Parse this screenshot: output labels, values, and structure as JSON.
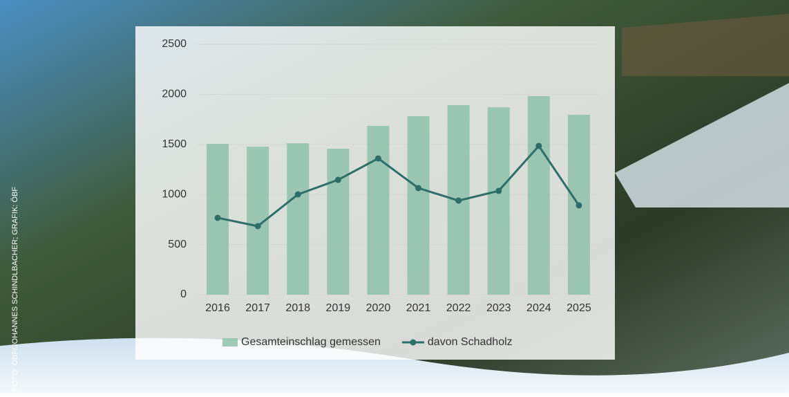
{
  "credit": "FOTO: ÖBF/JOHANNES SCHINDLBACHER; GRAFIK: ÖBF",
  "chart_data": {
    "type": "combo",
    "categories": [
      "2016",
      "2017",
      "2018",
      "2019",
      "2020",
      "2021",
      "2022",
      "2023",
      "2024",
      "2025"
    ],
    "series": [
      {
        "name": "Gesamteinschlag gemessen",
        "type": "bar",
        "color": "#8fc1ac",
        "values": [
          1505,
          1478,
          1512,
          1457,
          1685,
          1782,
          1892,
          1871,
          1982,
          1796
        ]
      },
      {
        "name": "davon Schadholz",
        "type": "line",
        "color": "#2e6e68",
        "values": [
          767,
          684,
          1001,
          1146,
          1360,
          1064,
          939,
          1036,
          1485,
          891
        ]
      }
    ],
    "ylim": [
      0,
      2500
    ],
    "yticks": [
      0,
      500,
      1000,
      1500,
      2000,
      2500
    ],
    "grid": true,
    "legend": "bottom"
  }
}
